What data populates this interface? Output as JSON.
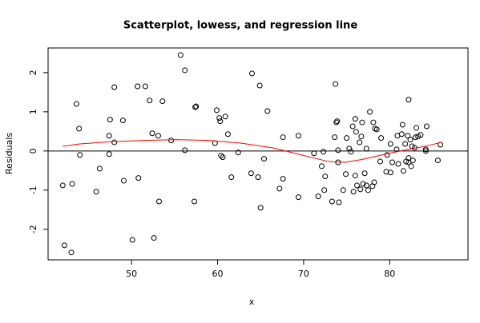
{
  "chart_data": {
    "type": "scatter",
    "title": "Scatterplot, lowess, and regression line",
    "x_label": "x",
    "y_label": "Residuals",
    "xlim": [
      40.3,
      89.1
    ],
    "ylim": [
      -2.78,
      2.63
    ],
    "xticks": [
      50,
      60,
      70,
      80
    ],
    "yticks": [
      -2,
      -1,
      0,
      1,
      2
    ],
    "color": "#000000",
    "x": [
      42.0,
      42.2,
      43.1,
      43.0,
      43.6,
      43.9,
      44.0,
      45.9,
      46.3,
      47.4,
      47.4,
      47.5,
      48.0,
      48.0,
      49.0,
      49.1,
      50.1,
      50.7,
      50.8,
      51.6,
      52.1,
      52.4,
      52.6,
      53.1,
      53.2,
      53.6,
      54.6,
      55.7,
      56.2,
      56.2,
      57.3,
      57.4,
      57.5,
      59.7,
      59.9,
      60.2,
      60.3,
      60.4,
      60.6,
      60.9,
      61.2,
      61.6,
      62.4,
      64.0,
      63.9,
      64.7,
      64.9,
      65.0,
      65.4,
      65.8,
      67.2,
      67.6,
      67.6,
      69.4,
      69.4,
      71.2,
      71.7,
      72.1,
      72.3,
      72.4,
      72.5,
      73.3,
      73.6,
      73.7,
      73.8,
      73.9,
      74.0,
      74.0,
      74.1,
      74.6,
      74.9,
      75.0,
      75.3,
      75.5,
      75.7,
      75.8,
      76.0,
      76.1,
      76.0,
      76.2,
      76.5,
      76.6,
      76.7,
      76.8,
      76.9,
      77.1,
      77.3,
      77.3,
      77.5,
      77.7,
      78.0,
      78.1,
      78.2,
      78.3,
      78.5,
      78.9,
      79.0,
      79.6,
      79.7,
      80.1,
      80.1,
      80.3,
      80.8,
      80.9,
      81.0,
      81.4,
      81.5,
      81.6,
      81.8,
      81.9,
      82.1,
      82.2,
      82.2,
      82.2,
      82.4,
      82.5,
      82.6,
      82.7,
      82.9,
      83.0,
      83.1,
      83.3,
      83.6,
      84.2,
      84.2,
      84.3,
      85.6,
      85.9
    ],
    "values": [
      -0.88,
      -2.41,
      -0.84,
      -2.59,
      1.2,
      0.57,
      -0.1,
      -1.04,
      -0.45,
      0.39,
      -0.08,
      0.8,
      1.63,
      0.22,
      0.78,
      -0.76,
      -2.27,
      1.65,
      -0.69,
      1.65,
      1.29,
      0.45,
      -2.22,
      0.39,
      -1.29,
      1.27,
      0.27,
      2.45,
      2.06,
      0.02,
      -1.29,
      1.12,
      1.14,
      0.2,
      1.04,
      0.84,
      0.76,
      -0.12,
      -0.16,
      0.88,
      0.43,
      -0.67,
      -0.04,
      1.98,
      -0.57,
      -0.67,
      1.67,
      -1.45,
      -0.2,
      1.02,
      -0.96,
      0.35,
      -0.71,
      0.39,
      -1.18,
      -0.06,
      -1.16,
      -0.39,
      -0.02,
      -1.0,
      -0.65,
      -1.29,
      0.35,
      1.71,
      0.73,
      0.76,
      0.02,
      -0.29,
      -1.31,
      -1.0,
      -0.59,
      0.33,
      0.06,
      -0.02,
      0.63,
      -1.04,
      0.82,
      0.49,
      -0.63,
      -0.88,
      0.22,
      -0.98,
      0.37,
      0.73,
      -0.84,
      -0.57,
      0.06,
      -0.88,
      -1.0,
      1.0,
      -0.9,
      0.73,
      -0.8,
      0.57,
      0.55,
      -0.27,
      0.33,
      -0.53,
      -0.1,
      -0.55,
      0.18,
      -0.29,
      0.04,
      0.39,
      -0.33,
      0.43,
      0.67,
      -0.51,
      0.18,
      -0.27,
      0.39,
      -0.18,
      -0.29,
      1.31,
      0.29,
      -0.39,
      0.12,
      -0.24,
      0.08,
      0.35,
      0.59,
      0.37,
      0.41,
      0.0,
      0.04,
      0.63,
      -0.24,
      0.16
    ],
    "lowess": {
      "color": "#ff0000",
      "x": [
        42.0,
        44.0,
        47.8,
        51.5,
        55.2,
        59.0,
        62.7,
        66.4,
        70.1,
        72.9,
        74.8,
        76.7,
        79.5,
        82.2,
        84.1,
        86.0
      ],
      "values": [
        0.12,
        0.18,
        0.24,
        0.27,
        0.29,
        0.27,
        0.2,
        0.08,
        -0.12,
        -0.27,
        -0.29,
        -0.22,
        -0.08,
        0.04,
        0.12,
        0.22
      ]
    },
    "regression_line": 0
  }
}
